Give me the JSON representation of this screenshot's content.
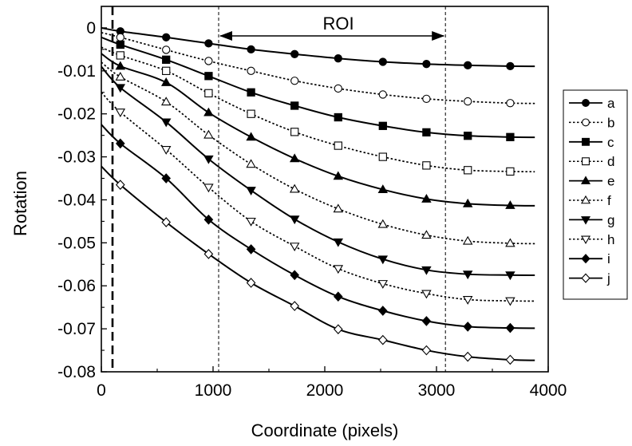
{
  "chart_data": {
    "type": "line",
    "title": "",
    "xlabel": "Coordinate (pixels)",
    "ylabel": "Rotation",
    "xlim": [
      0,
      4000
    ],
    "ylim": [
      -0.08,
      0.005
    ],
    "xticks": [
      0,
      1000,
      2000,
      3000,
      4000
    ],
    "xtick_labels": [
      "0",
      "1000",
      "2000",
      "3000",
      "4000"
    ],
    "yticks": [
      0,
      -0.01,
      -0.02,
      -0.03,
      -0.04,
      -0.05,
      -0.06,
      -0.07,
      -0.08
    ],
    "ytick_labels": [
      "0",
      "-0.01",
      "-0.02",
      "-0.03",
      "-0.04",
      "-0.05",
      "-0.06",
      "-0.07",
      "-0.08"
    ],
    "grid": false,
    "legend_position": "right",
    "roi": {
      "label": "ROI",
      "x_start": 1050,
      "x_end": 3080
    },
    "boundary_x": 100,
    "x": [
      170,
      580,
      960,
      1340,
      1730,
      2120,
      2520,
      2910,
      3280,
      3660
    ],
    "series": [
      {
        "name": "a",
        "marker": "circle",
        "filled": true,
        "line": "solid",
        "start": 0,
        "values": [
          -0.0008,
          -0.0022,
          -0.0036,
          -0.005,
          -0.0061,
          -0.0071,
          -0.0079,
          -0.0084,
          -0.0087,
          -0.0089
        ]
      },
      {
        "name": "b",
        "marker": "circle",
        "filled": false,
        "line": "dotted",
        "start": -0.0011,
        "values": [
          -0.0022,
          -0.0051,
          -0.0077,
          -0.01,
          -0.0123,
          -0.0141,
          -0.0155,
          -0.0165,
          -0.0171,
          -0.0175
        ]
      },
      {
        "name": "c",
        "marker": "square",
        "filled": true,
        "line": "solid",
        "start": -0.0022,
        "values": [
          -0.0039,
          -0.0074,
          -0.0112,
          -0.015,
          -0.0181,
          -0.0208,
          -0.0228,
          -0.0243,
          -0.0251,
          -0.0254
        ]
      },
      {
        "name": "d",
        "marker": "square",
        "filled": false,
        "line": "dotted",
        "start": -0.0045,
        "values": [
          -0.0064,
          -0.01,
          -0.0152,
          -0.02,
          -0.0242,
          -0.0274,
          -0.03,
          -0.032,
          -0.0331,
          -0.0334
        ]
      },
      {
        "name": "e",
        "marker": "triangle-up",
        "filled": true,
        "line": "solid",
        "start": -0.006,
        "values": [
          -0.0089,
          -0.0127,
          -0.0197,
          -0.0254,
          -0.0304,
          -0.0345,
          -0.0376,
          -0.0398,
          -0.0409,
          -0.0413
        ]
      },
      {
        "name": "f",
        "marker": "triangle-up",
        "filled": false,
        "line": "dotted",
        "start": -0.008,
        "values": [
          -0.0114,
          -0.0172,
          -0.0249,
          -0.0317,
          -0.0375,
          -0.0421,
          -0.0457,
          -0.0482,
          -0.0496,
          -0.0501
        ]
      },
      {
        "name": "g",
        "marker": "triangle-down",
        "filled": true,
        "line": "solid",
        "start": -0.009,
        "values": [
          -0.0139,
          -0.0219,
          -0.0305,
          -0.0378,
          -0.0445,
          -0.0498,
          -0.0538,
          -0.0563,
          -0.0573,
          -0.0575
        ]
      },
      {
        "name": "h",
        "marker": "triangle-down",
        "filled": false,
        "line": "dotted",
        "start": -0.015,
        "values": [
          -0.0196,
          -0.0283,
          -0.0371,
          -0.045,
          -0.0508,
          -0.056,
          -0.0595,
          -0.0618,
          -0.0632,
          -0.0635
        ]
      },
      {
        "name": "i",
        "marker": "diamond",
        "filled": true,
        "line": "solid",
        "start": -0.0225,
        "values": [
          -0.0269,
          -0.035,
          -0.0446,
          -0.0515,
          -0.0575,
          -0.0625,
          -0.0658,
          -0.0682,
          -0.0695,
          -0.0698
        ]
      },
      {
        "name": "j",
        "marker": "diamond",
        "filled": false,
        "line": "solid",
        "start": -0.0322,
        "values": [
          -0.0365,
          -0.0452,
          -0.0526,
          -0.0593,
          -0.0647,
          -0.0701,
          -0.0726,
          -0.075,
          -0.0765,
          -0.0772
        ]
      }
    ]
  }
}
